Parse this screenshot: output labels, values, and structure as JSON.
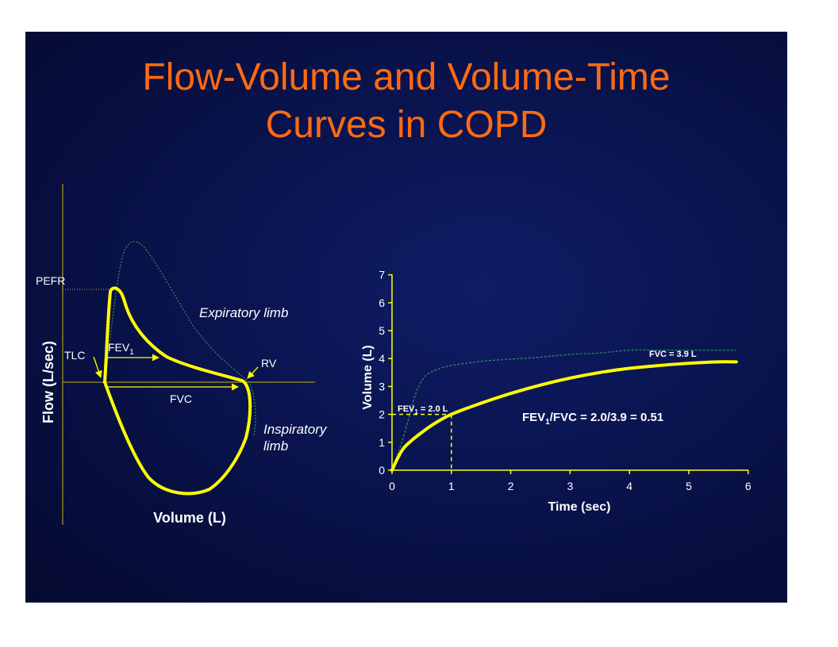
{
  "slide": {
    "title_line1": "Flow-Volume and Volume-Time",
    "title_line2": "Curves in COPD",
    "title_color": "#ff6a13",
    "curve_color": "#ffff00"
  },
  "chart_data": [
    {
      "type": "line",
      "xlabel": "Volume (L)",
      "ylabel": "Flow (L/sec)",
      "annotations": {
        "pefr": "PEFR",
        "tlc": "TLC",
        "rv": "RV",
        "fev1_main": "FEV",
        "fev1_sub": "1",
        "fvc": "FVC",
        "expiratory": "Expiratory limb",
        "inspiratory_line1": "Inspiratory",
        "inspiratory_line2": "limb"
      }
    },
    {
      "type": "line",
      "xlabel": "Time (sec)",
      "ylabel": "Volume (L)",
      "xlim": [
        0,
        6
      ],
      "ylim": [
        0,
        7
      ],
      "xticks": [
        "0",
        "1",
        "2",
        "3",
        "4",
        "5",
        "6"
      ],
      "yticks": [
        "0",
        "1",
        "2",
        "3",
        "4",
        "5",
        "6",
        "7"
      ],
      "series": [
        {
          "style": "solid",
          "x": [
            0,
            0.1,
            0.2,
            0.35,
            0.5,
            0.7,
            1.0,
            1.5,
            2.0,
            2.5,
            3.0,
            3.5,
            4.0,
            4.5,
            5.0,
            5.5,
            5.8
          ],
          "y": [
            0,
            0.45,
            0.8,
            1.1,
            1.35,
            1.65,
            2.0,
            2.4,
            2.75,
            3.05,
            3.3,
            3.5,
            3.65,
            3.75,
            3.83,
            3.88,
            3.88
          ]
        },
        {
          "style": "dashed",
          "x": [
            0,
            0.1,
            0.2,
            0.3,
            0.4,
            0.55,
            0.75,
            1.0,
            1.5,
            2.0,
            2.5,
            3.0,
            3.5,
            4.0,
            4.5,
            5.0,
            5.5,
            5.8
          ],
          "y": [
            0,
            0.6,
            1.25,
            2.0,
            2.75,
            3.35,
            3.6,
            3.75,
            3.9,
            3.98,
            4.05,
            4.15,
            4.2,
            4.3,
            4.3,
            4.3,
            4.3,
            4.3
          ]
        }
      ],
      "annotations": {
        "fev1_label_main": "FEV",
        "fev1_label_sub": "1",
        "fev1_label_rest": " = 2.0 L",
        "fvc_label": "FVC = 3.9 L",
        "ratio_main": "FEV",
        "ratio_sub": "1",
        "ratio_rest": "/FVC = 2.0/3.9 = 0.51"
      },
      "fev1_point": {
        "x": 1,
        "y": 2.0
      }
    }
  ]
}
